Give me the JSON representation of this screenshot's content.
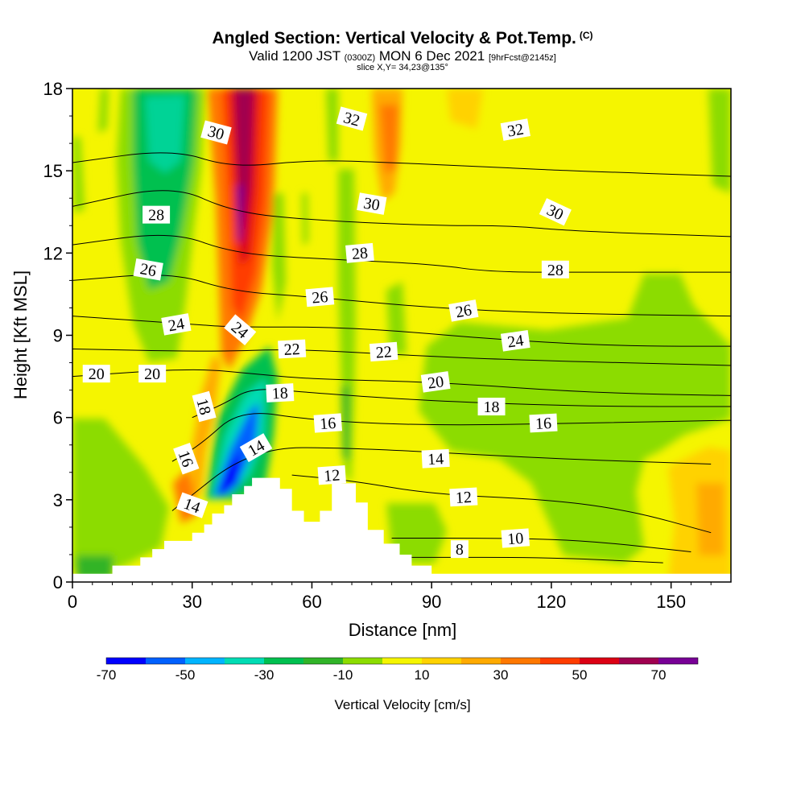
{
  "header": {
    "title": "Angled Section: Vertical Velocity & Pot.Temp.",
    "title_units": "(C)",
    "valid_prefix": "Valid 1200 JST",
    "valid_utc": "(0300Z)",
    "valid_date": "MON 6 Dec 2021",
    "forecast": "[9hrFcst@2145z]",
    "slice": "slice X,Y= 34,23@135°"
  },
  "chart_data": {
    "type": "heatmap",
    "title": "Angled Section: Vertical Velocity & Pot.Temp. (C)",
    "xlabel": "Distance [nm]",
    "ylabel": "Height [Kft MSL]",
    "xlim": [
      0,
      165
    ],
    "ylim": [
      0,
      18
    ],
    "xticks": [
      0,
      30,
      60,
      90,
      120,
      150
    ],
    "yticks": [
      0,
      3,
      6,
      9,
      12,
      15,
      18
    ],
    "colorbar": {
      "label": "Vertical Velocity [cm/s]",
      "bins": [
        -70,
        -60,
        -50,
        -40,
        -30,
        -20,
        -10,
        0,
        10,
        20,
        30,
        40,
        50,
        60,
        70,
        80
      ],
      "tick_labels": [
        "-70",
        "-50",
        "-30",
        "-10",
        "10",
        "30",
        "50",
        "70"
      ],
      "colors": [
        "#0000ff",
        "#0060ff",
        "#00b4ff",
        "#00dcb4",
        "#00c050",
        "#30b428",
        "#8cdc00",
        "#f5f500",
        "#ffd200",
        "#ffaa00",
        "#ff7800",
        "#ff3c00",
        "#dc0014",
        "#a00050",
        "#780096"
      ]
    },
    "terrain": [
      [
        0,
        0.3
      ],
      [
        10,
        0.3
      ],
      [
        10,
        0.6
      ],
      [
        17,
        0.6
      ],
      [
        17,
        0.9
      ],
      [
        20,
        0.9
      ],
      [
        20,
        1.2
      ],
      [
        23,
        1.2
      ],
      [
        23,
        1.5
      ],
      [
        30,
        1.5
      ],
      [
        30,
        1.8
      ],
      [
        33,
        1.8
      ],
      [
        33,
        2.1
      ],
      [
        35,
        2.1
      ],
      [
        35,
        2.5
      ],
      [
        38,
        2.5
      ],
      [
        38,
        2.8
      ],
      [
        40,
        2.8
      ],
      [
        40,
        3.2
      ],
      [
        43,
        3.2
      ],
      [
        43,
        3.5
      ],
      [
        45,
        3.5
      ],
      [
        45,
        3.8
      ],
      [
        52,
        3.8
      ],
      [
        52,
        3.4
      ],
      [
        55,
        3.4
      ],
      [
        55,
        2.6
      ],
      [
        58,
        2.6
      ],
      [
        58,
        2.2
      ],
      [
        62,
        2.2
      ],
      [
        62,
        2.6
      ],
      [
        65,
        2.6
      ],
      [
        65,
        3.6
      ],
      [
        71,
        3.6
      ],
      [
        71,
        2.9
      ],
      [
        74,
        2.9
      ],
      [
        74,
        1.9
      ],
      [
        78,
        1.9
      ],
      [
        78,
        1.4
      ],
      [
        82,
        1.4
      ],
      [
        82,
        1.0
      ],
      [
        85,
        1.0
      ],
      [
        85,
        0.6
      ],
      [
        90,
        0.6
      ],
      [
        90,
        0.3
      ],
      [
        165,
        0.3
      ]
    ],
    "isentropes": [
      {
        "theta": 8,
        "label": "8",
        "points": [
          [
            85,
            0.9
          ],
          [
            120,
            0.9
          ],
          [
            148,
            0.7
          ]
        ]
      },
      {
        "theta": 10,
        "label": "10",
        "points": [
          [
            80,
            1.6
          ],
          [
            110,
            1.6
          ],
          [
            130,
            1.5
          ],
          [
            155,
            1.1
          ]
        ]
      },
      {
        "theta": 12,
        "label": "12",
        "points": [
          [
            55,
            3.9
          ],
          [
            70,
            3.7
          ],
          [
            90,
            3.2
          ],
          [
            120,
            3.0
          ],
          [
            140,
            2.6
          ],
          [
            160,
            1.8
          ]
        ]
      },
      {
        "theta": 14,
        "label": "14",
        "points": [
          [
            25,
            2.6
          ],
          [
            45,
            4.9
          ],
          [
            70,
            4.9
          ],
          [
            120,
            4.5
          ],
          [
            160,
            4.3
          ]
        ]
      },
      {
        "theta": 16,
        "label": "16",
        "points": [
          [
            25,
            4.4
          ],
          [
            32,
            5.0
          ],
          [
            42,
            6.3
          ],
          [
            60,
            5.9
          ],
          [
            90,
            5.7
          ],
          [
            130,
            5.8
          ],
          [
            165,
            5.9
          ]
        ]
      },
      {
        "theta": 18,
        "label": "18",
        "points": [
          [
            30,
            6.0
          ],
          [
            38,
            6.5
          ],
          [
            45,
            7.1
          ],
          [
            60,
            6.9
          ],
          [
            90,
            6.6
          ],
          [
            130,
            6.4
          ],
          [
            165,
            6.4
          ]
        ]
      },
      {
        "theta": 20,
        "label": "20",
        "points": [
          [
            0,
            7.5
          ],
          [
            30,
            7.8
          ],
          [
            45,
            7.6
          ],
          [
            60,
            7.4
          ],
          [
            90,
            7.3
          ],
          [
            130,
            6.9
          ],
          [
            165,
            6.8
          ]
        ]
      },
      {
        "theta": 22,
        "label": "22",
        "points": [
          [
            0,
            8.5
          ],
          [
            35,
            8.4
          ],
          [
            55,
            8.5
          ],
          [
            80,
            8.3
          ],
          [
            110,
            8.1
          ],
          [
            165,
            7.9
          ]
        ]
      },
      {
        "theta": 24,
        "label": "24",
        "points": [
          [
            0,
            9.7
          ],
          [
            30,
            9.4
          ],
          [
            40,
            9.3
          ],
          [
            70,
            9.3
          ],
          [
            110,
            8.8
          ],
          [
            140,
            8.6
          ],
          [
            165,
            8.6
          ]
        ]
      },
      {
        "theta": 26,
        "label": "26",
        "points": [
          [
            0,
            11.0
          ],
          [
            25,
            11.3
          ],
          [
            40,
            10.6
          ],
          [
            60,
            10.4
          ],
          [
            90,
            10.0
          ],
          [
            120,
            9.8
          ],
          [
            165,
            9.7
          ]
        ]
      },
      {
        "theta": 28,
        "label": "28",
        "points": [
          [
            0,
            12.3
          ],
          [
            25,
            12.8
          ],
          [
            40,
            12.0
          ],
          [
            60,
            11.8
          ],
          [
            90,
            11.6
          ],
          [
            105,
            11.3
          ],
          [
            130,
            11.3
          ],
          [
            165,
            11.3
          ]
        ]
      },
      {
        "theta": 30,
        "label": "30",
        "points": [
          [
            0,
            13.7
          ],
          [
            25,
            14.5
          ],
          [
            40,
            13.5
          ],
          [
            60,
            13.2
          ],
          [
            90,
            13.0
          ],
          [
            110,
            13.0
          ],
          [
            125,
            12.8
          ],
          [
            165,
            12.6
          ]
        ]
      },
      {
        "theta": 32,
        "label": "32",
        "points": [
          [
            0,
            15.3
          ],
          [
            25,
            15.8
          ],
          [
            40,
            15.1
          ],
          [
            60,
            15.4
          ],
          [
            80,
            15.3
          ],
          [
            110,
            15.1
          ],
          [
            125,
            15.0
          ],
          [
            165,
            14.8
          ]
        ]
      }
    ]
  },
  "contour_labels": [
    {
      "text": "8",
      "x": 97,
      "y": 1.2,
      "rot": 0
    },
    {
      "text": "10",
      "x": 111,
      "y": 1.6,
      "rot": -4
    },
    {
      "text": "12",
      "x": 65,
      "y": 3.9,
      "rot": -4
    },
    {
      "text": "12",
      "x": 98,
      "y": 3.1,
      "rot": -3
    },
    {
      "text": "14",
      "x": 30,
      "y": 2.8,
      "rot": 20
    },
    {
      "text": "14",
      "x": 46,
      "y": 4.9,
      "rot": -30
    },
    {
      "text": "14",
      "x": 91,
      "y": 4.5,
      "rot": -3
    },
    {
      "text": "16",
      "x": 28.5,
      "y": 4.5,
      "rot": 70
    },
    {
      "text": "16",
      "x": 64,
      "y": 5.8,
      "rot": -4
    },
    {
      "text": "16",
      "x": 118,
      "y": 5.8,
      "rot": -3
    },
    {
      "text": "18",
      "x": 33,
      "y": 6.4,
      "rot": 75
    },
    {
      "text": "18",
      "x": 52,
      "y": 6.9,
      "rot": -3
    },
    {
      "text": "18",
      "x": 105,
      "y": 6.4,
      "rot": 0
    },
    {
      "text": "20",
      "x": 6,
      "y": 7.6,
      "rot": 0
    },
    {
      "text": "20",
      "x": 20,
      "y": 7.6,
      "rot": 0
    },
    {
      "text": "20",
      "x": 91,
      "y": 7.3,
      "rot": -8
    },
    {
      "text": "22",
      "x": 55,
      "y": 8.5,
      "rot": -3
    },
    {
      "text": "22",
      "x": 78,
      "y": 8.4,
      "rot": -4
    },
    {
      "text": "24",
      "x": 26,
      "y": 9.4,
      "rot": -10
    },
    {
      "text": "24",
      "x": 42,
      "y": 9.2,
      "rot": 40
    },
    {
      "text": "24",
      "x": 111,
      "y": 8.8,
      "rot": -8
    },
    {
      "text": "26",
      "x": 19,
      "y": 11.4,
      "rot": 10
    },
    {
      "text": "26",
      "x": 62,
      "y": 10.4,
      "rot": -5
    },
    {
      "text": "26",
      "x": 98,
      "y": 9.9,
      "rot": -10
    },
    {
      "text": "28",
      "x": 21,
      "y": 13.4,
      "rot": 0
    },
    {
      "text": "28",
      "x": 72,
      "y": 12.0,
      "rot": -5
    },
    {
      "text": "28",
      "x": 121,
      "y": 11.4,
      "rot": 0
    },
    {
      "text": "30",
      "x": 36,
      "y": 16.4,
      "rot": 15
    },
    {
      "text": "30",
      "x": 75,
      "y": 13.8,
      "rot": 10
    },
    {
      "text": "30",
      "x": 121,
      "y": 13.5,
      "rot": 25
    },
    {
      "text": "32",
      "x": 70,
      "y": 16.9,
      "rot": 15
    },
    {
      "text": "32",
      "x": 111,
      "y": 16.5,
      "rot": -10
    }
  ]
}
